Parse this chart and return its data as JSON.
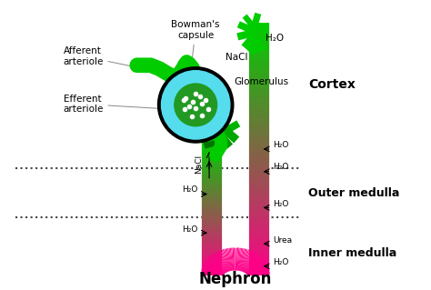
{
  "bg_color": "#ffffff",
  "labels": {
    "bowmans_capsule": "Bowman's\ncapsule",
    "glomerulus": "Glomerulus",
    "afferent": "Afferent\narteriole",
    "efferent": "Efferent\narteriole",
    "cortex": "Cortex",
    "outer_medulla": "Outer medulla",
    "inner_medulla": "Inner medulla",
    "nephron": "Nephron",
    "h2o_top": "H₂O",
    "nacl_top": "NaCl",
    "nacl_mid": "NaCl",
    "h2o_mid1": "H₂O",
    "h2o_mid2": "H₂O",
    "h2o_mid3": "H₂O",
    "h2o_bot1": "H₂O",
    "h2o_bot2": "H₂O",
    "urea": "Urea"
  },
  "colors": {
    "bright_green": "#00cc00",
    "dark_green": "#006600",
    "hot_pink": "#ff0088",
    "dark_maroon": "#660022",
    "cyan": "#55ddee",
    "black": "#000000",
    "gray": "#888888",
    "dot_line": "#444444"
  },
  "layout": {
    "fig_w": 4.74,
    "fig_h": 3.19,
    "dpi": 100,
    "xlim": [
      0,
      474
    ],
    "ylim": [
      0,
      319
    ],
    "cortex_y": 185,
    "outer_medulla_y": 240,
    "left_tube_x": 220,
    "right_tube_x": 280,
    "tube_lw": 16
  }
}
